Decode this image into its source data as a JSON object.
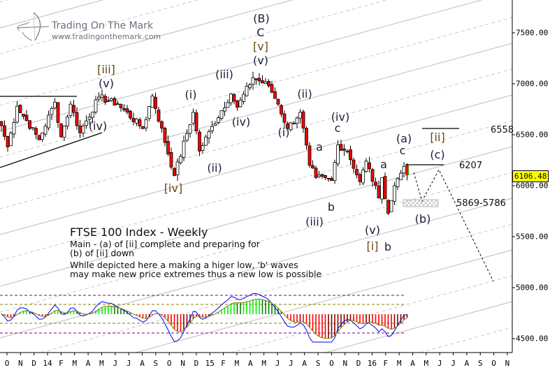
{
  "branding": {
    "title": "Trading On The Mark",
    "url": "www.tradingonthemark.com"
  },
  "notes": {
    "title": "FTSE 100 Index - Weekly",
    "line1": "Main - (a) of [ii] complete and preparing for",
    "line2": "(b) of [ii] down",
    "line3": "While depicted here a making a higer low, 'b' waves",
    "line4": "may make new price extremes thus a new low is possible"
  },
  "wave_labels": {
    "l1": "[iii]",
    "l2": "(v)",
    "l3": "(iv)",
    "l4": "[iv]",
    "l5": "(i)",
    "l6": "(ii)",
    "l7": "(iii)",
    "l8": "(iv)",
    "l9": "(B)",
    "l10": "C",
    "l11": "[v]",
    "l12": "(v)",
    "l13": "(ii)",
    "l14": "(i)",
    "l15": "a",
    "l16": "(iv)",
    "l17": "c",
    "l18": "b",
    "l19": "(iii)",
    "l20": "(v)",
    "l21": "[i]",
    "l22": "a",
    "l23": "b",
    "l24": "(a)",
    "l25": "c",
    "l26": "[ii]",
    "l27": "(c)",
    "l28": "(b)"
  },
  "levels": {
    "upper": "6558",
    "mid": "6207",
    "zone": "5869-5786"
  },
  "current_price": "6106.48",
  "colors": {
    "up": "#ffffff",
    "down": "#ff0000",
    "hist_up": "#00ee00",
    "hist_up_dark": "#008000",
    "hist_down": "#ff0000",
    "hist_down_dark": "#8b0000",
    "osc_line": "#0000ff",
    "signal_line": "#808000",
    "badge": "#ffff00"
  },
  "chart_data": {
    "type": "candlestick",
    "title": "FTSE 100 Index - Weekly",
    "y_ticks": [
      "7500.00",
      "7000.00",
      "6500.00",
      "6000.00",
      "5500.00",
      "5000.00",
      "4500.00"
    ],
    "y_tick_values": [
      7500,
      7000,
      6500,
      6000,
      5500,
      5000,
      4500
    ],
    "x_ticks": [
      "O",
      "N",
      "D",
      "14",
      "F",
      "M",
      "A",
      "M",
      "J",
      "J",
      "A",
      "S",
      "O",
      "N",
      "D",
      "15",
      "F",
      "M",
      "A",
      "M",
      "J",
      "J",
      "A",
      "S",
      "O",
      "N",
      "D",
      "16",
      "F",
      "M",
      "A",
      "M",
      "J",
      "J",
      "A",
      "S",
      "O",
      "N"
    ],
    "x_range": [
      "Oct 2013",
      "Nov 2016"
    ],
    "weekly_close_pivots": [
      [
        0,
        6590
      ],
      [
        2,
        6380
      ],
      [
        5,
        6780
      ],
      [
        12,
        6450
      ],
      [
        17,
        6820
      ],
      [
        19,
        6480
      ],
      [
        22,
        6800
      ],
      [
        25,
        6520
      ],
      [
        31,
        6870
      ],
      [
        37,
        6800
      ],
      [
        45,
        6560
      ],
      [
        48,
        6880
      ],
      [
        55,
        6100
      ],
      [
        61,
        6720
      ],
      [
        63,
        6340
      ],
      [
        67,
        6580
      ],
      [
        73,
        6900
      ],
      [
        75,
        6770
      ],
      [
        80,
        7060
      ],
      [
        85,
        6980
      ],
      [
        88,
        6800
      ],
      [
        91,
        6560
      ],
      [
        95,
        6720
      ],
      [
        98,
        6200
      ],
      [
        100,
        6080
      ],
      [
        105,
        6050
      ],
      [
        107,
        6400
      ],
      [
        110,
        6340
      ],
      [
        114,
        6040
      ],
      [
        116,
        6240
      ],
      [
        120,
        5880
      ],
      [
        121,
        6080
      ],
      [
        123,
        5730
      ],
      [
        125,
        6000
      ],
      [
        128,
        6190
      ],
      [
        129,
        6106.48
      ]
    ],
    "projection": [
      [
        6207,
        "high (a)"
      ],
      [
        5830,
        "(b) zone low"
      ],
      [
        6207,
        "(c) target"
      ],
      [
        5000,
        "continuation down"
      ]
    ]
  }
}
